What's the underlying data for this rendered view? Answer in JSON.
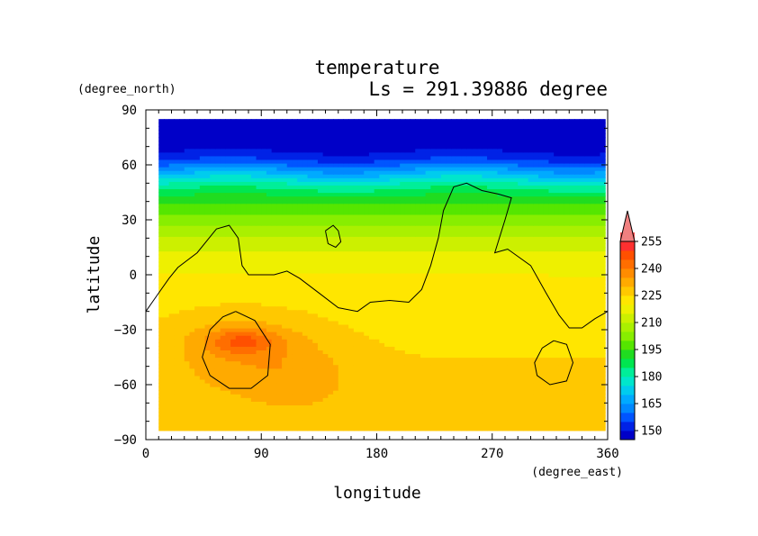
{
  "chart_data": {
    "type": "heatmap",
    "title": "temperature",
    "subtitle": "Ls = 291.39886 degree",
    "xlabel": "longitude",
    "ylabel": "latitude",
    "xunit": "(degree_east)",
    "yunit": "(degree_north)",
    "xlim": [
      0,
      360
    ],
    "ylim": [
      -90,
      90
    ],
    "xticks": [
      0,
      90,
      180,
      270,
      360
    ],
    "yticks": [
      90,
      60,
      30,
      0,
      -30,
      -60,
      -90
    ],
    "x_tick_labels": [
      "0",
      "90",
      "180",
      "270",
      "360"
    ],
    "y_tick_labels": [
      "90",
      "60",
      "30",
      "0",
      "−30",
      "−60",
      "−90"
    ],
    "grid": false,
    "colorbar": {
      "placement": "right",
      "extend": "max",
      "levels": [
        145,
        150,
        155,
        160,
        165,
        170,
        175,
        180,
        185,
        190,
        195,
        200,
        205,
        210,
        215,
        220,
        225,
        230,
        235,
        240,
        245,
        250,
        255,
        260
      ],
      "labeled_levels": [
        150,
        165,
        180,
        195,
        210,
        225,
        240,
        255
      ],
      "tick_labels": [
        "150",
        "165",
        "180",
        "195",
        "210",
        "225",
        "240",
        "255"
      ],
      "colors": [
        "#0000c8",
        "#0022e6",
        "#0055ff",
        "#0088ff",
        "#00aaff",
        "#00ccee",
        "#00e6cc",
        "#00ee99",
        "#00e650",
        "#20dc20",
        "#55e600",
        "#88ee00",
        "#aaf000",
        "#ccf000",
        "#eef000",
        "#ffe600",
        "#ffc800",
        "#ffaa00",
        "#ff8c00",
        "#ff6e00",
        "#ff5000",
        "#ff3030",
        "#ff5050",
        "#f08080"
      ]
    },
    "lat_profile": [
      [
        -85,
        226
      ],
      [
        -60,
        226
      ],
      [
        -45,
        225
      ],
      [
        -30,
        224
      ],
      [
        -20,
        223
      ],
      [
        -10,
        221
      ],
      [
        0,
        220
      ],
      [
        10,
        217
      ],
      [
        20,
        211
      ],
      [
        30,
        203
      ],
      [
        38,
        196
      ],
      [
        45,
        188
      ],
      [
        50,
        180
      ],
      [
        55,
        170
      ],
      [
        60,
        160
      ],
      [
        65,
        152
      ],
      [
        70,
        148
      ],
      [
        85,
        146
      ]
    ],
    "warm_anomalies": [
      {
        "center": [
          70,
          -40
        ],
        "radius": [
          55,
          24
        ],
        "value": 8
      },
      {
        "center": [
          120,
          -55
        ],
        "radius": [
          45,
          22
        ],
        "value": 6
      },
      {
        "center": [
          75,
          -36
        ],
        "radius": [
          28,
          7
        ],
        "value": 14
      }
    ],
    "contours": [
      [
        [
          0,
          -20
        ],
        [
          8,
          -12
        ],
        [
          18,
          -2
        ],
        [
          25,
          4
        ],
        [
          40,
          12
        ],
        [
          55,
          25
        ],
        [
          65,
          27
        ],
        [
          72,
          20
        ],
        [
          75,
          5
        ],
        [
          80,
          0
        ],
        [
          100,
          0
        ],
        [
          110,
          2
        ],
        [
          120,
          -2
        ],
        [
          135,
          -10
        ],
        [
          150,
          -18
        ],
        [
          165,
          -20
        ],
        [
          175,
          -15
        ],
        [
          190,
          -14
        ],
        [
          205,
          -15
        ],
        [
          215,
          -8
        ],
        [
          222,
          5
        ],
        [
          228,
          20
        ],
        [
          232,
          35
        ],
        [
          240,
          48
        ],
        [
          250,
          50
        ],
        [
          262,
          46
        ],
        [
          275,
          44
        ],
        [
          285,
          42
        ],
        [
          280,
          30
        ],
        [
          272,
          12
        ],
        [
          282,
          14
        ],
        [
          300,
          5
        ],
        [
          312,
          -10
        ],
        [
          322,
          -22
        ],
        [
          330,
          -29
        ],
        [
          340,
          -29
        ],
        [
          350,
          -24
        ],
        [
          360,
          -20
        ]
      ],
      [
        [
          140,
          24
        ],
        [
          146,
          27
        ],
        [
          150,
          24
        ],
        [
          152,
          18
        ],
        [
          148,
          15
        ],
        [
          142,
          17
        ],
        [
          140,
          24
        ]
      ],
      [
        [
          70,
          -20
        ],
        [
          85,
          -25
        ],
        [
          97,
          -38
        ],
        [
          95,
          -55
        ],
        [
          82,
          -62
        ],
        [
          65,
          -62
        ],
        [
          50,
          -55
        ],
        [
          44,
          -45
        ],
        [
          50,
          -30
        ],
        [
          60,
          -23
        ],
        [
          70,
          -20
        ]
      ],
      [
        [
          318,
          -36
        ],
        [
          328,
          -38
        ],
        [
          333,
          -48
        ],
        [
          328,
          -58
        ],
        [
          315,
          -60
        ],
        [
          305,
          -55
        ],
        [
          303,
          -48
        ],
        [
          309,
          -40
        ],
        [
          318,
          -36
        ]
      ]
    ]
  }
}
